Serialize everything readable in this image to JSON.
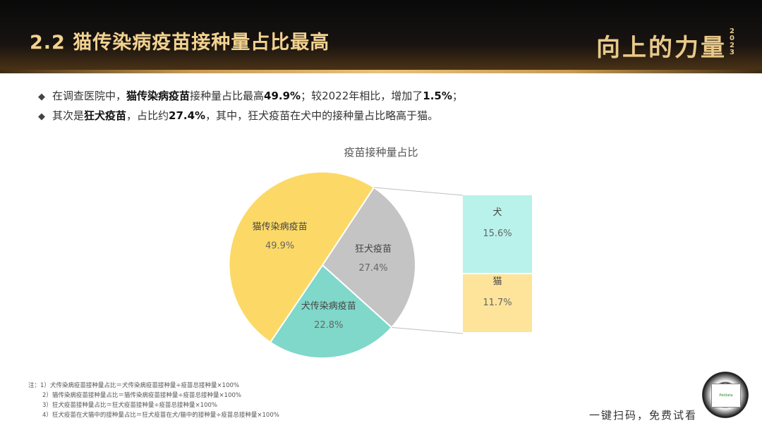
{
  "header": {
    "title": "2.2  猫传染病疫苗接种量占比最高",
    "brand": "向上的力量",
    "brand_year": "2023"
  },
  "bullets": [
    {
      "marker": "◆",
      "text_before": "在调查医院中，",
      "bold": "猫传染病疫苗",
      "text_mid": "接种量占比最高",
      "bold2": "49.9%",
      "text_after": "；较2022年相比，增加了",
      "bold3": "1.5%",
      "text_end": "；"
    },
    {
      "marker": "◆",
      "text_before": "其次是",
      "bold": "狂犬疫苗",
      "text_mid": "，占比约",
      "bold2": "27.4%",
      "text_after": "，其中，狂犬疫苗在犬中的接种量占比略高于猫。",
      "bold3": "",
      "text_end": ""
    }
  ],
  "chart_data": {
    "type": "pie",
    "title": "疫苗接种量占比",
    "slices": [
      {
        "label": "猫传染病疫苗",
        "value": 49.9,
        "display": "49.9%",
        "color": "#fcd966"
      },
      {
        "label": "狂犬疫苗",
        "value": 27.4,
        "display": "27.4%",
        "color": "#c4c4c4"
      },
      {
        "label": "犬传染病疫苗",
        "value": 22.8,
        "display": "22.8%",
        "color": "#7fd8c9"
      }
    ],
    "breakdown_of": "狂犬疫苗",
    "breakdown": [
      {
        "label": "犬",
        "value": 15.6,
        "display": "15.6%",
        "color": "#b8f2eb"
      },
      {
        "label": "猫",
        "value": 11.7,
        "display": "11.7%",
        "color": "#fde49a"
      }
    ]
  },
  "notes": [
    "注：1）犬传染病疫苗接种量占比＝犬传染病疫苗接种量÷疫苗总接种量×100%",
    "2）猫传染病疫苗接种量占比＝猫传染病疫苗接种量÷疫苗总接种量×100%",
    "3）狂犬疫苗接种量占比＝狂犬疫苗接种量÷疫苗总接种量×100%",
    "4）狂犬疫苗在犬猫中的接种量占比＝狂犬疫苗在犬/猫中的接种量÷疫苗总接种量×100%"
  ],
  "qr": {
    "caption": "一键扫码，免费试看",
    "logo_text": "Petdata"
  }
}
